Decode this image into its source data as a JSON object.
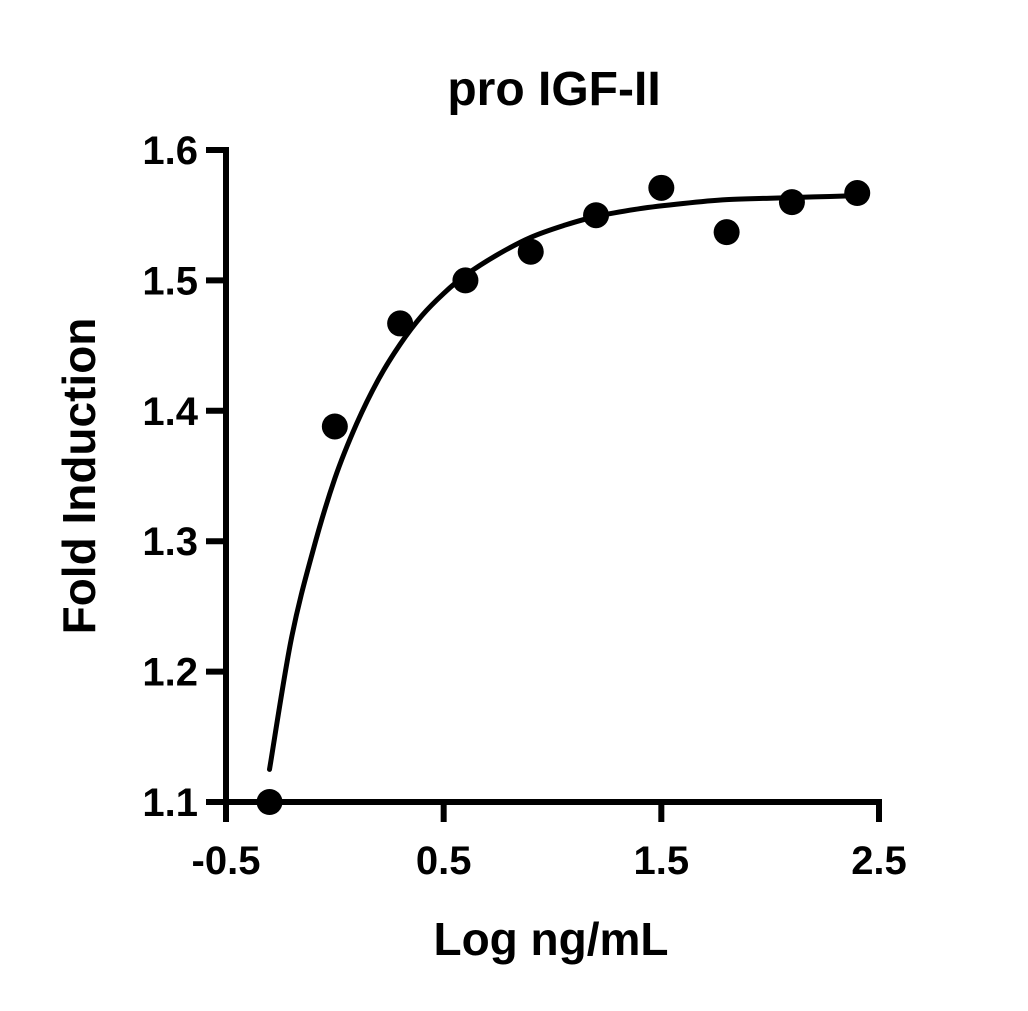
{
  "chart_data": {
    "type": "scatter",
    "title": "pro IGF-II",
    "xlabel": "Log ng/mL",
    "ylabel": "Fold Induction",
    "xlim": [
      -0.5,
      2.5
    ],
    "ylim": [
      1.1,
      1.6
    ],
    "xticks": [
      "-0.5",
      "0.5",
      "1.5",
      "2.5"
    ],
    "xtick_values": [
      -0.5,
      0.5,
      1.5,
      2.5
    ],
    "yticks": [
      "1.1",
      "1.2",
      "1.3",
      "1.4",
      "1.5",
      "1.6"
    ],
    "ytick_values": [
      1.1,
      1.2,
      1.3,
      1.4,
      1.5,
      1.6
    ],
    "grid": false,
    "legend": "none",
    "points": [
      {
        "x": -0.3,
        "y": 1.1
      },
      {
        "x": 0.0,
        "y": 1.388
      },
      {
        "x": 0.3,
        "y": 1.467
      },
      {
        "x": 0.6,
        "y": 1.5
      },
      {
        "x": 0.9,
        "y": 1.522
      },
      {
        "x": 1.2,
        "y": 1.55
      },
      {
        "x": 1.5,
        "y": 1.571
      },
      {
        "x": 1.8,
        "y": 1.537
      },
      {
        "x": 2.1,
        "y": 1.56
      },
      {
        "x": 2.4,
        "y": 1.567
      }
    ],
    "fit_curve": [
      {
        "x": -0.3,
        "y": 1.125
      },
      {
        "x": -0.2,
        "y": 1.225
      },
      {
        "x": -0.1,
        "y": 1.293
      },
      {
        "x": 0.0,
        "y": 1.348
      },
      {
        "x": 0.1,
        "y": 1.39
      },
      {
        "x": 0.2,
        "y": 1.424
      },
      {
        "x": 0.3,
        "y": 1.451
      },
      {
        "x": 0.4,
        "y": 1.473
      },
      {
        "x": 0.5,
        "y": 1.49
      },
      {
        "x": 0.6,
        "y": 1.504
      },
      {
        "x": 0.75,
        "y": 1.52
      },
      {
        "x": 0.9,
        "y": 1.533
      },
      {
        "x": 1.05,
        "y": 1.542
      },
      {
        "x": 1.2,
        "y": 1.549
      },
      {
        "x": 1.4,
        "y": 1.555
      },
      {
        "x": 1.6,
        "y": 1.559
      },
      {
        "x": 1.8,
        "y": 1.562
      },
      {
        "x": 2.0,
        "y": 1.563
      },
      {
        "x": 2.2,
        "y": 1.564
      },
      {
        "x": 2.4,
        "y": 1.565
      }
    ],
    "colors": {
      "axis": "#000000",
      "points": "#000000",
      "curve": "#000000",
      "background": "#ffffff"
    }
  }
}
